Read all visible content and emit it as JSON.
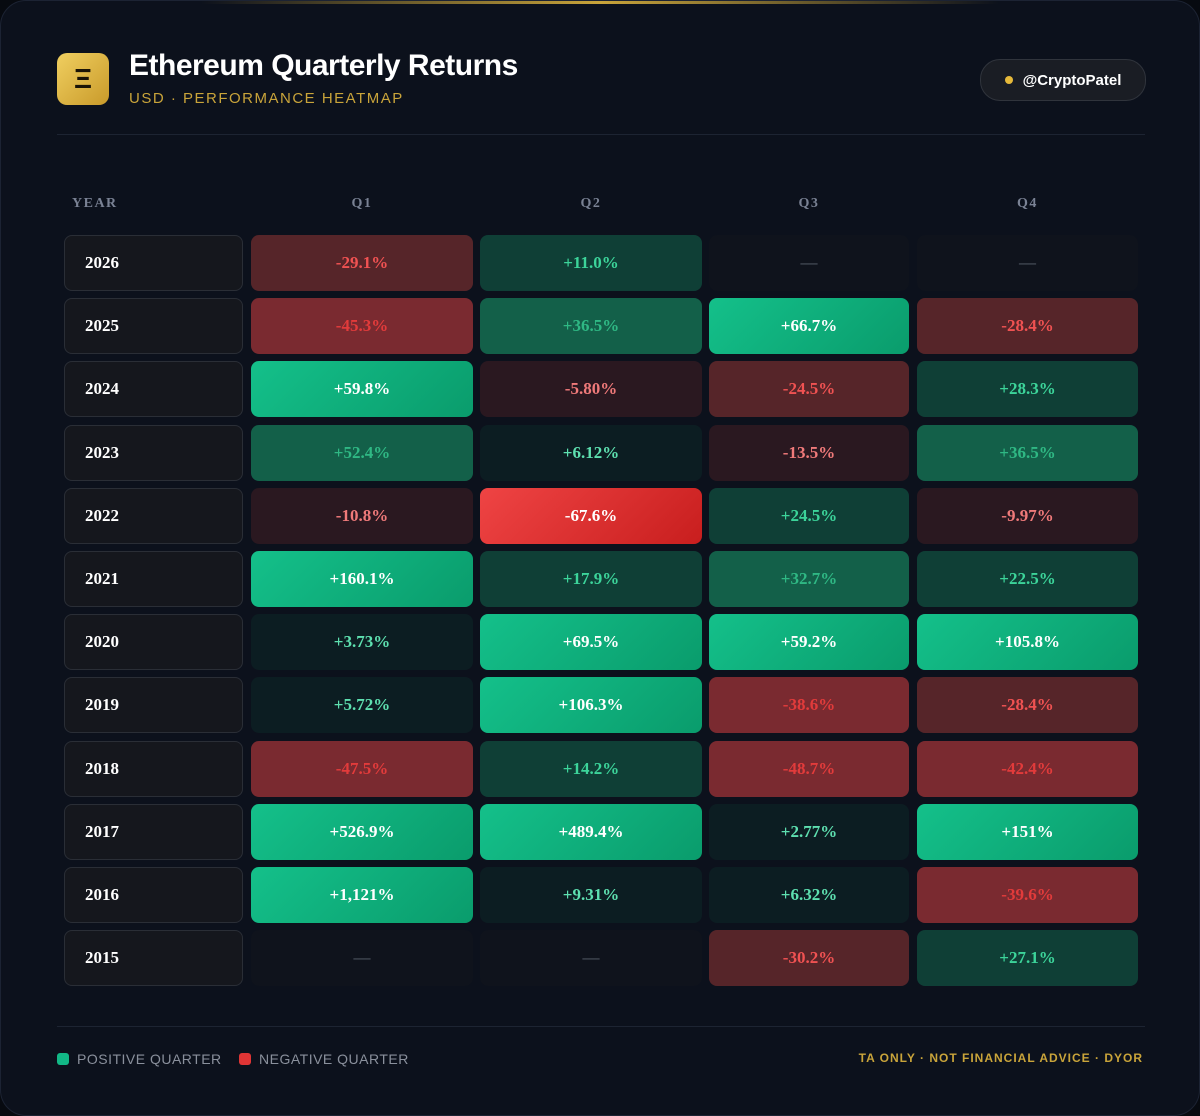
{
  "header": {
    "icon": "Ξ",
    "title": "Ethereum Quarterly Returns",
    "subtitle": "USD · PERFORMANCE HEATMAP",
    "badge": "@CryptoPatel"
  },
  "table": {
    "columns": [
      "YEAR",
      "Q1",
      "Q2",
      "Q3",
      "Q4"
    ],
    "rows": [
      [
        "2026",
        "-29.1%",
        "+11.0%",
        "—",
        "—"
      ],
      [
        "2025",
        "-45.3%",
        "+36.5%",
        "+66.7%",
        "-28.4%"
      ],
      [
        "2024",
        "+59.8%",
        "-5.80%",
        "-24.5%",
        "+28.3%"
      ],
      [
        "2023",
        "+52.4%",
        "+6.12%",
        "-13.5%",
        "+36.5%"
      ],
      [
        "2022",
        "-10.8%",
        "-67.6%",
        "+24.5%",
        "-9.97%"
      ],
      [
        "2021",
        "+160.1%",
        "+17.9%",
        "+32.7%",
        "+22.5%"
      ],
      [
        "2020",
        "+3.73%",
        "+69.5%",
        "+59.2%",
        "+105.8%"
      ],
      [
        "2019",
        "+5.72%",
        "+106.3%",
        "-38.6%",
        "-28.4%"
      ],
      [
        "2018",
        "-47.5%",
        "+14.2%",
        "-48.7%",
        "-42.4%"
      ],
      [
        "2017",
        "+526.9%",
        "+489.4%",
        "+2.77%",
        "+151%"
      ],
      [
        "2016",
        "+1,121%",
        "+9.31%",
        "+6.32%",
        "-39.6%"
      ],
      [
        "2015",
        "—",
        "—",
        "-30.2%",
        "+27.1%"
      ]
    ]
  },
  "legend": [
    "POSITIVE QUARTER",
    "NEGATIVE QUARTER"
  ],
  "footer": "TA ONLY · NOT FINANCIAL ADVICE · DYOR"
}
